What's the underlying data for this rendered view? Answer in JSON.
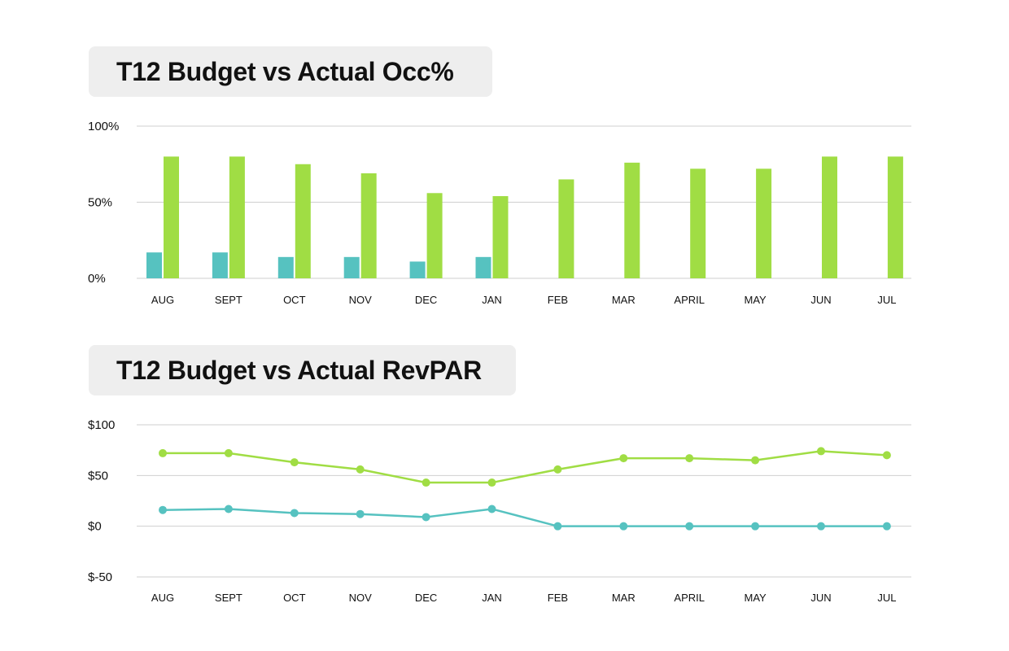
{
  "colors": {
    "budget": "#a0dd44",
    "actual": "#56c2c0",
    "grid": "#cfcfcf",
    "pill": "#eeeeee"
  },
  "chart_data": [
    {
      "type": "bar",
      "title": "T12 Budget vs Actual Occ%",
      "categories": [
        "AUG",
        "SEPT",
        "OCT",
        "NOV",
        "DEC",
        "JAN",
        "FEB",
        "MAR",
        "APRIL",
        "MAY",
        "JUN",
        "JUL"
      ],
      "yticks": [
        0,
        50,
        100
      ],
      "ytick_labels": [
        "0%",
        "50%",
        "100%"
      ],
      "ylim": [
        0,
        100
      ],
      "grid": true,
      "series": [
        {
          "key": "actual",
          "values": [
            17,
            17,
            14,
            14,
            11,
            14,
            0,
            0,
            0,
            0,
            0,
            0
          ]
        },
        {
          "key": "budget",
          "values": [
            80,
            80,
            75,
            69,
            56,
            54,
            65,
            76,
            72,
            72,
            80,
            80
          ]
        }
      ]
    },
    {
      "type": "line",
      "title": "T12 Budget vs Actual RevPAR",
      "categories": [
        "AUG",
        "SEPT",
        "OCT",
        "NOV",
        "DEC",
        "JAN",
        "FEB",
        "MAR",
        "APRIL",
        "MAY",
        "JUN",
        "JUL"
      ],
      "yticks": [
        -50,
        0,
        50,
        100
      ],
      "ytick_labels": [
        "$-50",
        "$0",
        "$50",
        "$100"
      ],
      "ylim": [
        -50,
        100
      ],
      "grid": true,
      "series": [
        {
          "key": "budget",
          "values": [
            72,
            72,
            63,
            56,
            43,
            43,
            56,
            67,
            67,
            65,
            74,
            70
          ]
        },
        {
          "key": "actual",
          "values": [
            16,
            17,
            13,
            12,
            9,
            17,
            0,
            0,
            0,
            0,
            0,
            0
          ]
        }
      ]
    }
  ]
}
